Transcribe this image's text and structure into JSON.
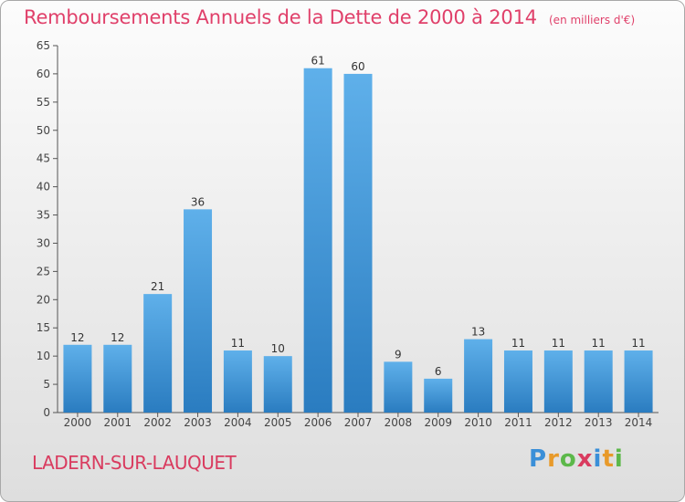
{
  "title": "Remboursements Annuels de la Dette de 2000 à 2014",
  "unit_label": "(en milliers d'€)",
  "commune": "LADERN-SUR-LAUQUET",
  "logo": {
    "text": "Proxiti",
    "letters": [
      {
        "ch": "P",
        "color": "#3a8fd8"
      },
      {
        "ch": "r",
        "color": "#e89a2a"
      },
      {
        "ch": "o",
        "color": "#5cb84a"
      },
      {
        "ch": "x",
        "color": "#d93b5f"
      },
      {
        "ch": "i",
        "color": "#3a8fd8"
      },
      {
        "ch": "t",
        "color": "#e89a2a"
      },
      {
        "ch": "i",
        "color": "#5cb84a"
      }
    ]
  },
  "colors": {
    "bar_top": "#5fb0ea",
    "bar_bottom": "#2a7cc0",
    "title": "#e0406a",
    "axis": "#555555"
  },
  "chart_data": {
    "type": "bar",
    "categories": [
      "2000",
      "2001",
      "2002",
      "2003",
      "2004",
      "2005",
      "2006",
      "2007",
      "2008",
      "2009",
      "2010",
      "2011",
      "2012",
      "2013",
      "2014"
    ],
    "values": [
      12,
      12,
      21,
      36,
      11,
      10,
      61,
      60,
      9,
      6,
      13,
      11,
      11,
      11,
      11
    ],
    "ylim": [
      0,
      65
    ],
    "yticks": [
      0,
      5,
      10,
      15,
      20,
      25,
      30,
      35,
      40,
      45,
      50,
      55,
      60,
      65
    ],
    "grid": false,
    "data_labels": true
  }
}
